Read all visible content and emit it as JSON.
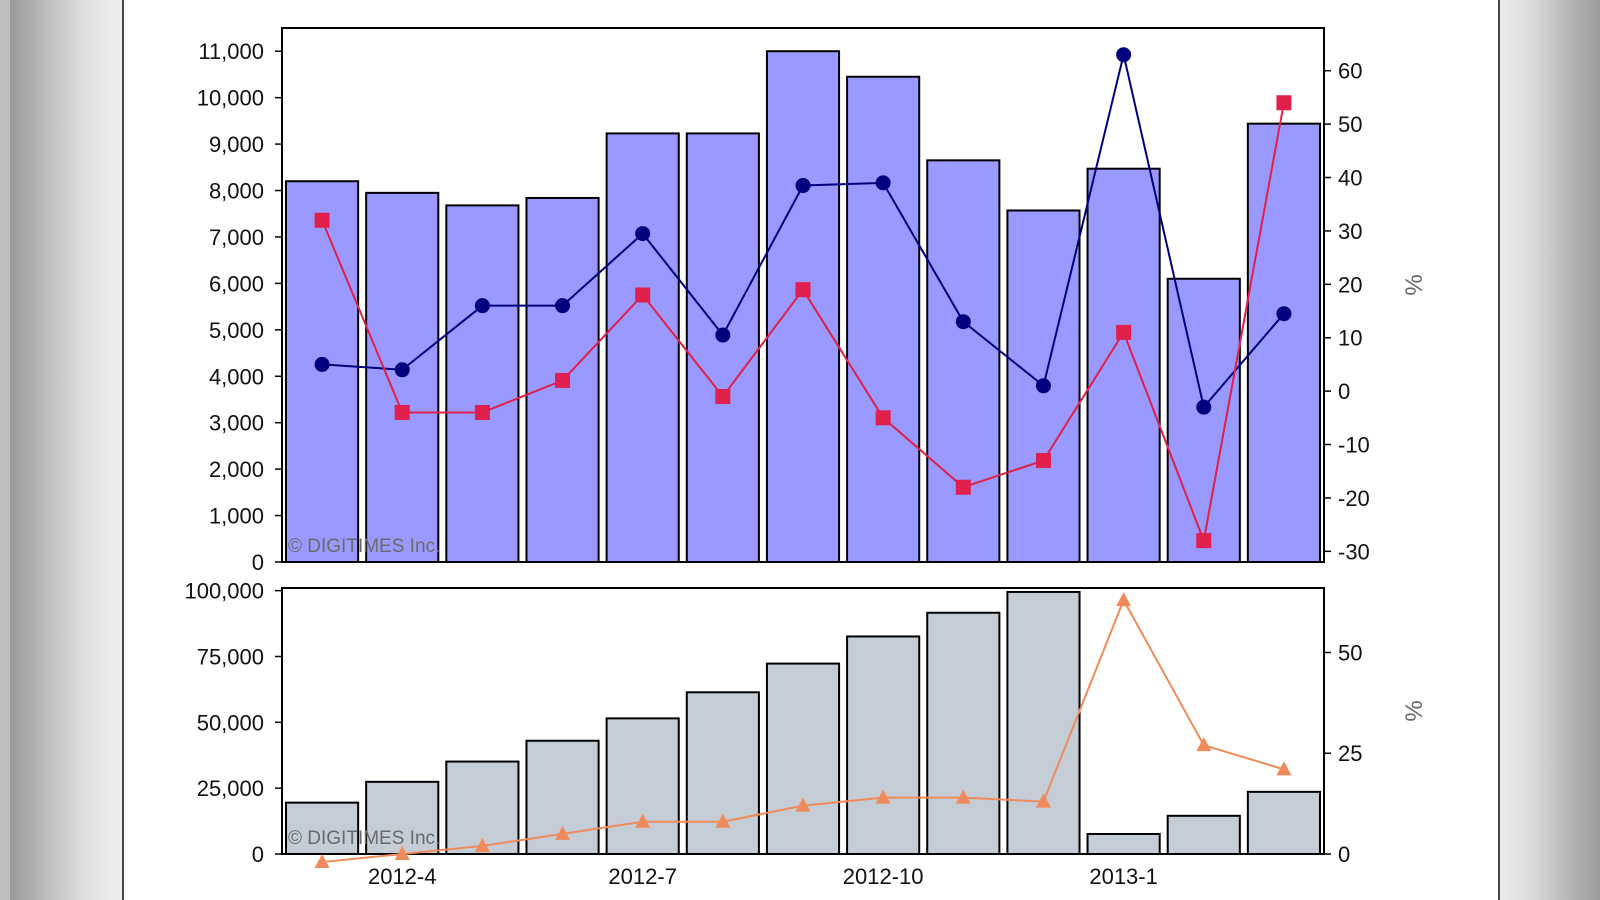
{
  "chart_data": [
    {
      "type": "bar",
      "panel": "top",
      "watermark": "© DIGITIMES Inc.",
      "right_axis_label": "%",
      "left_ticks": [
        "0",
        "1,000",
        "2,000",
        "3,000",
        "4,000",
        "5,000",
        "6,000",
        "7,000",
        "8,000",
        "9,000",
        "10,000",
        "11,000"
      ],
      "right_ticks": [
        "-30",
        "-20",
        "-10",
        "0",
        "10",
        "20",
        "30",
        "40",
        "50",
        "60"
      ],
      "ylim_left": [
        0,
        11500
      ],
      "ylim_right": [
        -32,
        68
      ],
      "bar_color": "#9999ff",
      "bars": [
        8200,
        7950,
        7680,
        7840,
        9230,
        9230,
        11000,
        10450,
        8650,
        7570,
        8470,
        6100,
        9440
      ],
      "line_dark": {
        "color": "#00007f",
        "values": [
          5,
          4,
          16,
          16,
          29.5,
          10.5,
          38.5,
          39,
          13,
          1,
          63,
          -3,
          14.5
        ]
      },
      "line_red": {
        "color": "#e0204a",
        "values": [
          32,
          -4,
          -4,
          2,
          18,
          -1,
          19,
          -5,
          -18,
          -13,
          11,
          -28,
          54
        ]
      }
    },
    {
      "type": "bar",
      "panel": "bottom",
      "watermark": "© DIGITIMES Inc.",
      "right_axis_label": "%",
      "left_ticks": [
        "0",
        "25,000",
        "50,000",
        "75,000",
        "100,000"
      ],
      "right_ticks": [
        "0",
        "25",
        "50"
      ],
      "ylim_left": [
        0,
        101000
      ],
      "ylim_right": [
        0,
        66
      ],
      "bar_color": "#c4ccd6",
      "bars": [
        19500,
        27400,
        35100,
        43000,
        51500,
        61400,
        72300,
        82600,
        91600,
        99500,
        7600,
        14500,
        23600
      ],
      "line_orange": {
        "color": "#f08a5a",
        "values": [
          -2,
          0,
          2,
          5,
          8,
          8,
          12,
          14,
          14,
          13,
          63,
          27,
          21
        ]
      },
      "x_tick_labels": [
        {
          "index": 1,
          "label": "2012-4"
        },
        {
          "index": 4,
          "label": "2012-7"
        },
        {
          "index": 7,
          "label": "2012-10"
        },
        {
          "index": 10,
          "label": "2013-1"
        }
      ]
    }
  ]
}
